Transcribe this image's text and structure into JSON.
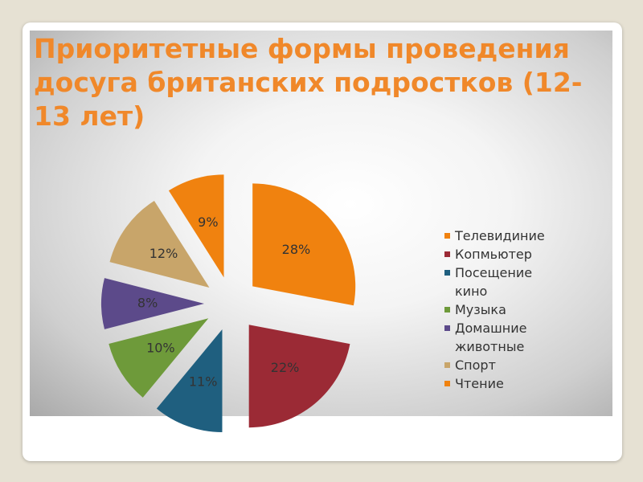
{
  "chart_data": {
    "type": "pie",
    "title": "Приоритетные формы проведения досуга британских подростков (12-13 лет)",
    "categories": [
      "Телевидиние",
      "Копмьютер",
      "Посещение кино",
      "Музыка",
      "Домашние животные",
      "Спорт",
      "Чтение"
    ],
    "values": [
      28,
      22,
      11,
      10,
      8,
      12,
      9
    ],
    "value_labels": [
      "28%",
      "22%",
      "11%",
      "10%",
      "8%",
      "12%",
      "9%"
    ],
    "colors": [
      "#f0820f",
      "#9b2a35",
      "#1f5f7f",
      "#6e9a3a",
      "#5c4a8a",
      "#c8a56a",
      "#f0820f"
    ]
  }
}
